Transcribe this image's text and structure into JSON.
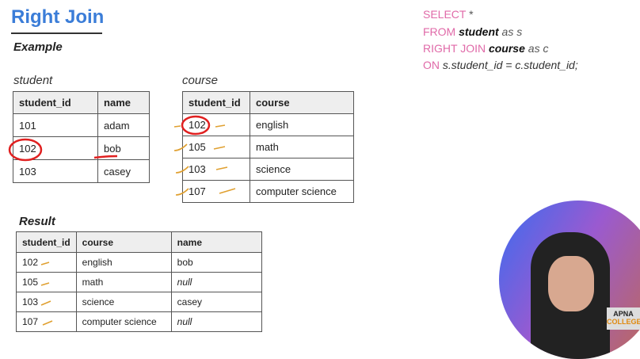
{
  "title": "Right Join",
  "example": "Example",
  "student": {
    "caption": "student",
    "headers": [
      "student_id",
      "name"
    ],
    "rows": [
      [
        "101",
        "adam"
      ],
      [
        "102",
        "bob"
      ],
      [
        "103",
        "casey"
      ]
    ]
  },
  "course": {
    "caption": "course",
    "headers": [
      "student_id",
      "course"
    ],
    "rows": [
      [
        "102",
        "english"
      ],
      [
        "105",
        "math"
      ],
      [
        "103",
        "science"
      ],
      [
        "107",
        "computer science"
      ]
    ]
  },
  "result": {
    "caption": "Result",
    "headers": [
      "student_id",
      "course",
      "name"
    ],
    "rows": [
      [
        "102",
        "english",
        "bob"
      ],
      [
        "105",
        "math",
        "null"
      ],
      [
        "103",
        "science",
        "casey"
      ],
      [
        "107",
        "computer science",
        "null"
      ]
    ]
  },
  "sql": {
    "l1kw": "SELECT",
    "l1rest": " *",
    "l2kw": "FROM",
    "l2tb": "student",
    "l2rest": " as s",
    "l3kw": "RIGHT JOIN",
    "l3tb": "course",
    "l3rest": " as c",
    "l4kw": "ON",
    "l4rest": " s.student_id = c.student_id;"
  },
  "logo": {
    "line1": "APNA",
    "line2": "COLLEGE"
  },
  "colors": {
    "title": "#3b7dd8",
    "keyword": "#e06aa8",
    "annotation_red": "#e02020",
    "annotation_orange": "#e0a030"
  }
}
